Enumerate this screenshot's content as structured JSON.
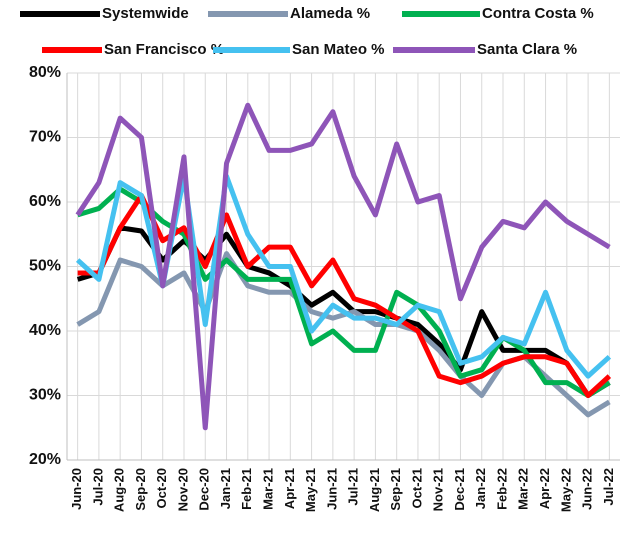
{
  "chart_data": {
    "type": "line",
    "categories": [
      "Jun-20",
      "Jul-20",
      "Aug-20",
      "Sep-20",
      "Oct-20",
      "Nov-20",
      "Dec-20",
      "Jan-21",
      "Feb-21",
      "Mar-21",
      "Apr-21",
      "May-21",
      "Jun-21",
      "Jul-21",
      "Aug-21",
      "Sep-21",
      "Oct-21",
      "Nov-21",
      "Dec-21",
      "Jan-22",
      "Feb-22",
      "Mar-22",
      "Apr-22",
      "May-22",
      "Jun-22",
      "Jul-22"
    ],
    "series": [
      {
        "name": "Systemwide",
        "color": "#000000",
        "values": [
          48,
          49,
          56,
          55.5,
          51,
          54,
          51,
          55,
          50,
          49,
          47,
          44,
          46,
          43,
          43,
          42,
          41,
          38,
          34,
          43,
          37,
          37,
          37,
          35,
          30,
          32
        ]
      },
      {
        "name": "Alameda %",
        "color": "#8497b0",
        "values": [
          41,
          43,
          51,
          50,
          47,
          49,
          43,
          52,
          47,
          46,
          46,
          43,
          42,
          43,
          41,
          41,
          40,
          37,
          33,
          30,
          35,
          36,
          33,
          30,
          27,
          29
        ]
      },
      {
        "name": "Contra Costa %",
        "color": "#00b050",
        "values": [
          58,
          59,
          62,
          60,
          57,
          55,
          48,
          51,
          48,
          48,
          48,
          38,
          40,
          37,
          37,
          46,
          44,
          40,
          33,
          34,
          39,
          37,
          32,
          32,
          30,
          32
        ]
      },
      {
        "name": "San Francisco %",
        "color": "#ff0000",
        "values": [
          49,
          49,
          56,
          61,
          54,
          56,
          50,
          58,
          50,
          53,
          53,
          47,
          51,
          45,
          44,
          42,
          40,
          33,
          32,
          33,
          35,
          36,
          36,
          35,
          30,
          33
        ]
      },
      {
        "name": "San Mateo %",
        "color": "#45c1f0",
        "values": [
          51,
          48,
          63,
          61,
          47,
          64,
          41,
          64,
          55,
          50,
          50,
          40,
          44,
          42,
          42,
          41,
          44,
          43,
          35,
          36,
          39,
          38,
          46,
          37,
          33,
          36
        ]
      },
      {
        "name": "Santa Clara %",
        "color": "#8e55b8",
        "values": [
          58,
          63,
          73,
          70,
          47,
          67,
          25,
          66,
          75,
          68,
          68,
          69,
          74,
          64,
          58,
          69,
          60,
          61,
          45,
          53,
          57,
          56,
          60,
          57,
          55,
          53
        ]
      }
    ],
    "ylim": [
      20,
      80
    ],
    "yticks": [
      {
        "value": 20,
        "label": "20%"
      },
      {
        "value": 30,
        "label": "30%"
      },
      {
        "value": 40,
        "label": "40%"
      },
      {
        "value": 50,
        "label": "50%"
      },
      {
        "value": 60,
        "label": "60%"
      },
      {
        "value": 70,
        "label": "70%"
      },
      {
        "value": 80,
        "label": "80%"
      }
    ],
    "grid": true
  }
}
